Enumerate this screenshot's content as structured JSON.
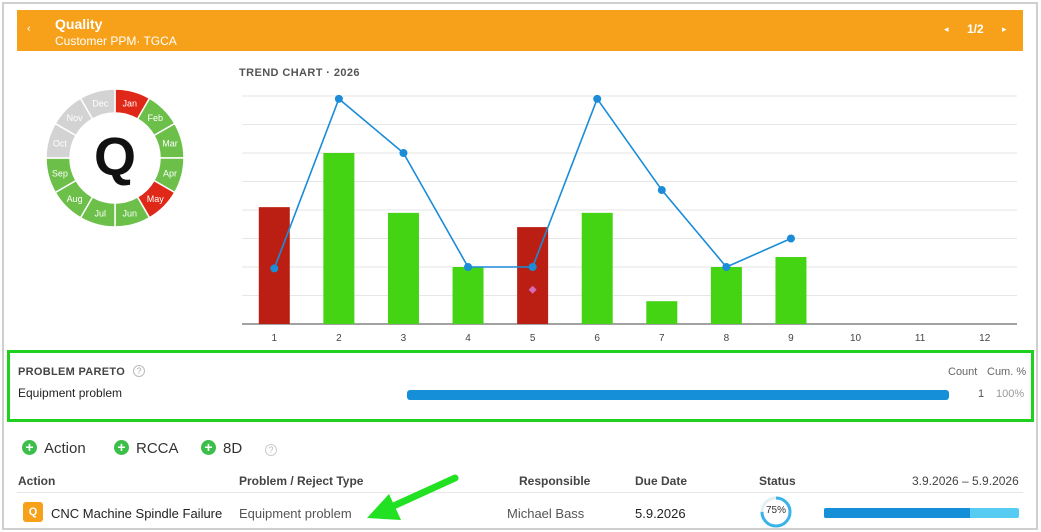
{
  "header": {
    "title": "Quality",
    "subtitle": "Customer PPM· TGCA",
    "back_icon": "‹",
    "prev_icon": "◂",
    "next_icon": "▸",
    "page": "1/2"
  },
  "wheel": {
    "center_letter": "Q",
    "colors": {
      "good": "#6cc04a",
      "bad": "#e02818",
      "empty": "#d3d3d3"
    },
    "months": [
      {
        "label": "Jan",
        "status": "bad"
      },
      {
        "label": "Feb",
        "status": "good"
      },
      {
        "label": "Mar",
        "status": "good"
      },
      {
        "label": "Apr",
        "status": "good"
      },
      {
        "label": "May",
        "status": "bad"
      },
      {
        "label": "Jun",
        "status": "good"
      },
      {
        "label": "Jul",
        "status": "good"
      },
      {
        "label": "Aug",
        "status": "good"
      },
      {
        "label": "Sep",
        "status": "good"
      },
      {
        "label": "Oct",
        "status": "empty"
      },
      {
        "label": "Nov",
        "status": "empty"
      },
      {
        "label": "Dec",
        "status": "empty"
      }
    ]
  },
  "trend": {
    "title": "TREND CHART · 2026"
  },
  "chart_data": {
    "type": "bar",
    "title": "TREND CHART · 2026",
    "categories": [
      "1",
      "2",
      "3",
      "4",
      "5",
      "6",
      "7",
      "8",
      "9",
      "10",
      "11",
      "12"
    ],
    "ylim": [
      0,
      8
    ],
    "grid": true,
    "series": [
      {
        "values": [
          4.1,
          6.0,
          3.9,
          2.0,
          3.4,
          3.9,
          0.8,
          2.0,
          2.35,
          null,
          null,
          null
        ],
        "bar_status": [
          "bad",
          "good",
          "good",
          "good",
          "bad",
          "good",
          "good",
          "good",
          "good",
          null,
          null,
          null
        ]
      },
      {
        "type": "line",
        "values": [
          1.95,
          7.9,
          6.0,
          2.0,
          2.0,
          7.9,
          4.7,
          2.0,
          3.0,
          null,
          null,
          null
        ]
      },
      {
        "type": "marker",
        "values": [
          null,
          null,
          null,
          null,
          1.2,
          null,
          null,
          null,
          null,
          null,
          null,
          null
        ]
      }
    ],
    "colors": {
      "good": "#44d414",
      "bad": "#bb1f14",
      "line": "#1a8cd8",
      "marker": "#d56bb8",
      "grid": "#e6e6e6",
      "axis": "#444"
    }
  },
  "pareto": {
    "title": "PROBLEM PARETO",
    "help_icon": "?",
    "count_header": "Count",
    "cum_header": "Cum. %",
    "items": [
      {
        "label": "Equipment problem",
        "count": "1",
        "cum": "100%",
        "fraction": 1.0
      }
    ],
    "bar_color": "#1590d8"
  },
  "actions": {
    "plus_icon": "+",
    "action": "Action",
    "rcca": "RCCA",
    "eight_d": "8D",
    "help_icon": "?"
  },
  "table": {
    "headers": {
      "action": "Action",
      "type": "Problem / Reject Type",
      "responsible": "Responsible",
      "due": "Due Date",
      "status": "Status",
      "range": "3.9.2026 – 5.9.2026"
    },
    "rows": [
      {
        "badge": "Q",
        "action": "CNC Machine Spindle Failure",
        "type": "Equipment problem",
        "responsible": "Michael Bass",
        "due": "5.9.2026",
        "status_pct": 75,
        "status_text": "75%",
        "timeline_fraction": 0.75
      }
    ]
  },
  "annotation": {
    "arrow_color": "#22e022"
  }
}
